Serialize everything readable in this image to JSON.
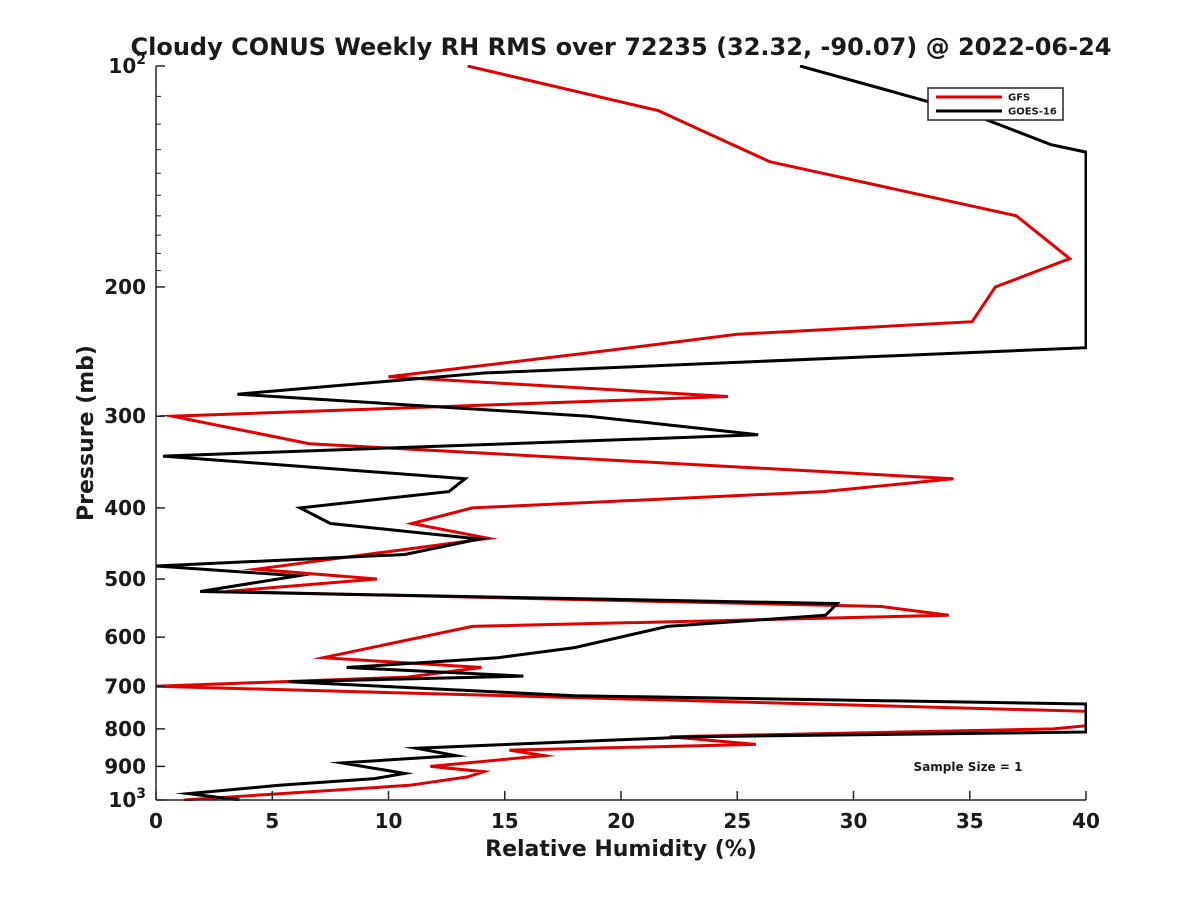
{
  "chart_data": {
    "type": "line",
    "title": "Cloudy CONUS Weekly RH RMS over 72235 (32.32, -90.07) @ 2022-06-24",
    "xlabel": "Relative Humidity (%)",
    "ylabel": "Pressure (mb)",
    "xlim": [
      0,
      40
    ],
    "ylim": [
      100,
      1000
    ],
    "yscale": "log",
    "yreverse": true,
    "x_ticks": [
      0,
      5,
      10,
      15,
      20,
      25,
      30,
      35,
      40
    ],
    "x_tick_labels": [
      "0",
      "5",
      "10",
      "15",
      "20",
      "25",
      "30",
      "35",
      "40"
    ],
    "y_ticks": [
      100,
      200,
      300,
      400,
      500,
      600,
      700,
      800,
      900,
      1000
    ],
    "y_tick_labels": [
      {
        "base": "10",
        "exp": "2"
      },
      {
        "base": "200",
        "exp": ""
      },
      {
        "base": "300",
        "exp": ""
      },
      {
        "base": "400",
        "exp": ""
      },
      {
        "base": "500",
        "exp": ""
      },
      {
        "base": "600",
        "exp": ""
      },
      {
        "base": "700",
        "exp": ""
      },
      {
        "base": "800",
        "exp": ""
      },
      {
        "base": "900",
        "exp": ""
      },
      {
        "base": "10",
        "exp": "3"
      }
    ],
    "legend_position": "top-right",
    "annotation": "Sample Size = 1",
    "series": [
      {
        "name": "GFS",
        "color": "#e00000",
        "points": [
          [
            13.4,
            100
          ],
          [
            21.6,
            115
          ],
          [
            26.4,
            135
          ],
          [
            37.0,
            160
          ],
          [
            39.3,
            183
          ],
          [
            36.1,
            200
          ],
          [
            35.1,
            223
          ],
          [
            25.0,
            232
          ],
          [
            18.6,
            246
          ],
          [
            10.0,
            265
          ],
          [
            24.6,
            282
          ],
          [
            0.7,
            300
          ],
          [
            6.6,
            327
          ],
          [
            34.3,
            365
          ],
          [
            28.7,
            380
          ],
          [
            13.6,
            400
          ],
          [
            11.0,
            420
          ],
          [
            14.3,
            440
          ],
          [
            7.5,
            470
          ],
          [
            4.3,
            485
          ],
          [
            9.5,
            500
          ],
          [
            3.0,
            520
          ],
          [
            31.2,
            545
          ],
          [
            34.1,
            560
          ],
          [
            13.6,
            580
          ],
          [
            7.2,
            640
          ],
          [
            14.0,
            660
          ],
          [
            10.8,
            680
          ],
          [
            0.0,
            700
          ],
          [
            40.0,
            757
          ],
          [
            40.0,
            792
          ],
          [
            38.6,
            800
          ],
          [
            22.1,
            820
          ],
          [
            25.8,
            840
          ],
          [
            15.2,
            855
          ],
          [
            16.7,
            870
          ],
          [
            11.8,
            900
          ],
          [
            14.1,
            915
          ],
          [
            13.4,
            930
          ],
          [
            10.9,
            955
          ],
          [
            1.2,
            1000
          ]
        ]
      },
      {
        "name": "GOES-16",
        "color": "#000000",
        "points": [
          [
            27.7,
            100
          ],
          [
            31.5,
            108
          ],
          [
            35.0,
            116
          ],
          [
            38.5,
            128
          ],
          [
            40.0,
            131
          ],
          [
            40.0,
            242
          ],
          [
            14.1,
            262
          ],
          [
            3.5,
            280
          ],
          [
            18.6,
            300
          ],
          [
            25.9,
            318
          ],
          [
            0.3,
            340
          ],
          [
            13.3,
            365
          ],
          [
            12.6,
            380
          ],
          [
            6.2,
            400
          ],
          [
            7.5,
            420
          ],
          [
            13.9,
            441
          ],
          [
            10.7,
            463
          ],
          [
            0.0,
            480
          ],
          [
            6.1,
            495
          ],
          [
            1.9,
            520
          ],
          [
            29.3,
            540
          ],
          [
            28.8,
            560
          ],
          [
            22.0,
            580
          ],
          [
            18.0,
            620
          ],
          [
            14.7,
            640
          ],
          [
            8.2,
            660
          ],
          [
            15.8,
            678
          ],
          [
            5.7,
            690
          ],
          [
            18.0,
            721
          ],
          [
            40.0,
            740
          ],
          [
            40.0,
            808
          ],
          [
            23.2,
            820
          ],
          [
            11.2,
            850
          ],
          [
            12.9,
            870
          ],
          [
            8.0,
            890
          ],
          [
            10.7,
            920
          ],
          [
            9.4,
            935
          ],
          [
            5.3,
            955
          ],
          [
            1.4,
            980
          ],
          [
            3.6,
            1000
          ]
        ]
      }
    ]
  }
}
